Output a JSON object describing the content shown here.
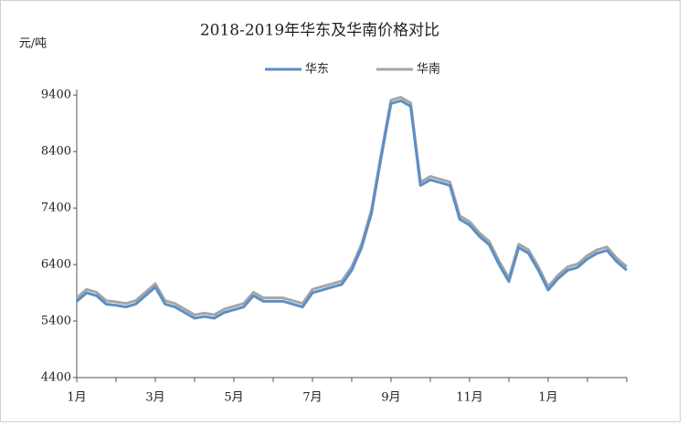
{
  "chart_data": {
    "type": "line",
    "title": "2018-2019年华东及华南价格对比",
    "y_label": "元/吨",
    "categories": [
      "1月",
      null,
      null,
      null,
      null,
      null,
      null,
      null,
      "3月",
      null,
      null,
      null,
      null,
      null,
      null,
      null,
      "5月",
      null,
      null,
      null,
      null,
      null,
      null,
      null,
      "7月",
      null,
      null,
      null,
      null,
      null,
      null,
      null,
      "9月",
      null,
      null,
      null,
      null,
      null,
      null,
      null,
      "11月",
      null,
      null,
      null,
      null,
      null,
      null,
      null,
      "1月",
      null,
      null,
      null,
      null,
      null,
      null,
      null,
      null
    ],
    "series": [
      {
        "name": "华东",
        "color": "#5b8fc7",
        "values": [
          5750,
          5900,
          5850,
          5700,
          5680,
          5650,
          5700,
          5850,
          6000,
          5700,
          5650,
          5550,
          5450,
          5480,
          5450,
          5550,
          5600,
          5650,
          5850,
          5750,
          5750,
          5750,
          5700,
          5650,
          5900,
          5950,
          6000,
          6050,
          6300,
          6700,
          7300,
          8300,
          9250,
          9300,
          9200,
          7800,
          7900,
          7850,
          7800,
          7200,
          7100,
          6900,
          6750,
          6400,
          6100,
          6700,
          6600,
          6300,
          5950,
          6150,
          6300,
          6350,
          6500,
          6600,
          6650,
          6450,
          6300
        ]
      },
      {
        "name": "华南",
        "color": "#a5a5a5",
        "values": [
          5810,
          5960,
          5910,
          5760,
          5740,
          5710,
          5760,
          5910,
          6060,
          5760,
          5710,
          5610,
          5510,
          5540,
          5510,
          5610,
          5660,
          5710,
          5910,
          5810,
          5810,
          5810,
          5760,
          5710,
          5960,
          6010,
          6060,
          6110,
          6360,
          6760,
          7360,
          8360,
          9310,
          9360,
          9260,
          7860,
          7960,
          7910,
          7860,
          7260,
          7160,
          6960,
          6810,
          6460,
          6160,
          6760,
          6660,
          6360,
          6010,
          6210,
          6360,
          6410,
          6560,
          6660,
          6710,
          6510,
          6360
        ]
      }
    ],
    "ylim": [
      4400,
      9500
    ],
    "yticks": [
      4400,
      5400,
      6400,
      7400,
      8400,
      9400
    ]
  }
}
